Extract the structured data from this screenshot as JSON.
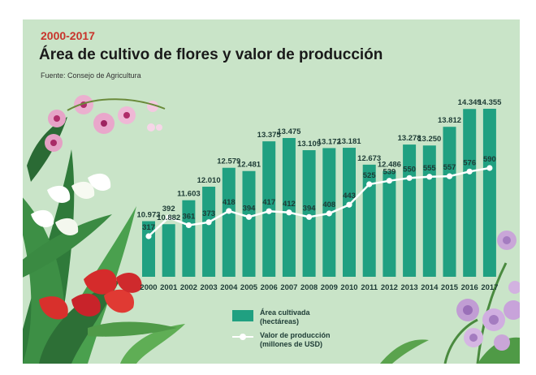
{
  "header": {
    "period": "2000-2017",
    "title": "Área de cultivo de flores y valor de producción",
    "source": "Fuente: Consejo de Agricultura"
  },
  "legend": {
    "bars_label": "Área cultivada",
    "bars_unit": "(hectáreas)",
    "line_label": "Valor de producción",
    "line_unit": "(millones de USD)"
  },
  "colors": {
    "background": "#c9e4c8",
    "bars": "#20a081",
    "line": "#ffffff",
    "period_text": "#c8332b"
  },
  "chart_data": {
    "type": "bar",
    "categories": [
      "2000",
      "2001",
      "2002",
      "2003",
      "2004",
      "2005",
      "2006",
      "2007",
      "2008",
      "2009",
      "2010",
      "2011",
      "2012",
      "2013",
      "2014",
      "2015",
      "2016",
      "2017"
    ],
    "series": [
      {
        "name": "Área cultivada (hectáreas)",
        "type": "bar",
        "values": [
          10973,
          10882,
          11603,
          12010,
          12579,
          12481,
          13375,
          13475,
          13109,
          13172,
          13181,
          12673,
          12486,
          13278,
          13250,
          13812,
          14349,
          14355
        ],
        "labels": [
          "10.973",
          "10.882",
          "11.603",
          "12.010",
          "12.579",
          "12.481",
          "13.375",
          "13.475",
          "13.109",
          "13.172",
          "13.181",
          "12.673",
          "12.486",
          "13.278",
          "13.250",
          "13.812",
          "14.349",
          "14.355"
        ]
      },
      {
        "name": "Valor de producción (millones de USD)",
        "type": "line",
        "values": [
          317,
          392,
          361,
          373,
          418,
          394,
          417,
          412,
          394,
          408,
          443,
          525,
          539,
          550,
          555,
          557,
          576,
          590
        ],
        "labels": [
          "317",
          "392",
          "361",
          "373",
          "418",
          "394",
          "417",
          "412",
          "394",
          "408",
          "443",
          "525",
          "539",
          "550",
          "555",
          "557",
          "576",
          "590"
        ]
      }
    ],
    "grid": false,
    "legend_position": "bottom-center"
  }
}
